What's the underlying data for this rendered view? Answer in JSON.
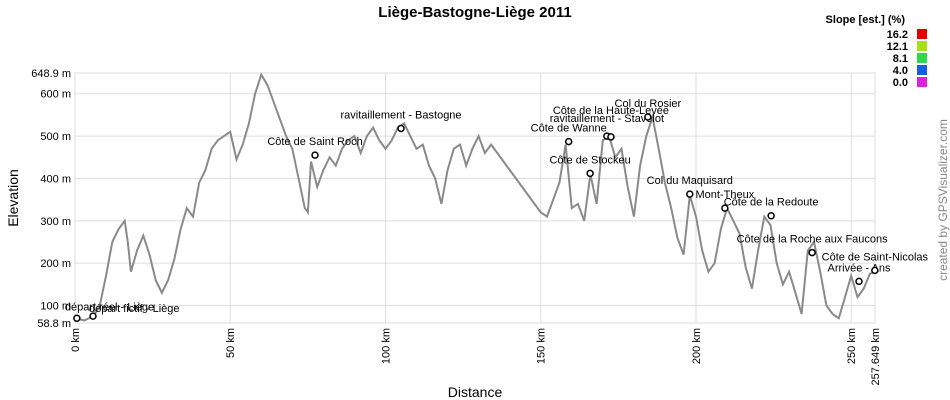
{
  "chart_data": {
    "type": "line",
    "title": "Liège-Bastogne-Liège 2011",
    "x_label": "Distance",
    "y_label": "Elevation",
    "watermark": "created by GPSVisualizer.com",
    "grid": true,
    "color": "#8a8a8a",
    "xlim": [
      0,
      257.649
    ],
    "ylim": [
      58.8,
      648.9
    ],
    "xticks": [
      {
        "value": 0,
        "label": "0 km"
      },
      {
        "value": 50,
        "label": "50 km"
      },
      {
        "value": 100,
        "label": "100 km"
      },
      {
        "value": 150,
        "label": "150 km"
      },
      {
        "value": 200,
        "label": "200 km"
      },
      {
        "value": 250,
        "label": "250 km"
      },
      {
        "value": 257.649,
        "label": "257.649 km"
      }
    ],
    "yticks": [
      {
        "value": 58.8,
        "label": "58.8 m"
      },
      {
        "value": 100,
        "label": "100 m"
      },
      {
        "value": 200,
        "label": "200 m"
      },
      {
        "value": 300,
        "label": "300 m"
      },
      {
        "value": 400,
        "label": "400 m"
      },
      {
        "value": 500,
        "label": "500 m"
      },
      {
        "value": 600,
        "label": "600 m"
      },
      {
        "value": 648.9,
        "label": "648.9 m"
      }
    ],
    "x": [
      0,
      3,
      6,
      8,
      10,
      12,
      14,
      16,
      17,
      18,
      20,
      22,
      24,
      26,
      28,
      30,
      32,
      34,
      36,
      38,
      40,
      42,
      44,
      46,
      48,
      50,
      52,
      54,
      56,
      58,
      60,
      62,
      64,
      66,
      68,
      70,
      72,
      74,
      75,
      76,
      78,
      80,
      82,
      84,
      86,
      88,
      90,
      92,
      94,
      96,
      98,
      100,
      102,
      104,
      106,
      108,
      110,
      112,
      114,
      116,
      118,
      120,
      122,
      124,
      126,
      128,
      130,
      132,
      134,
      136,
      138,
      140,
      142,
      144,
      146,
      148,
      150,
      152,
      154,
      156,
      158,
      160,
      162,
      164,
      166,
      168,
      170,
      172,
      174,
      176,
      178,
      180,
      182,
      184,
      186,
      188,
      190,
      192,
      194,
      196,
      198,
      200,
      202,
      204,
      206,
      208,
      210,
      212,
      214,
      216,
      218,
      220,
      222,
      224,
      226,
      228,
      230,
      232,
      234,
      236,
      238,
      240,
      242,
      244,
      246,
      248,
      250,
      252,
      254,
      256,
      257.649
    ],
    "values": [
      70,
      65,
      75,
      100,
      170,
      250,
      280,
      300,
      250,
      180,
      230,
      265,
      220,
      160,
      130,
      160,
      210,
      280,
      330,
      310,
      390,
      420,
      470,
      490,
      500,
      510,
      445,
      480,
      530,
      600,
      645,
      620,
      580,
      540,
      500,
      470,
      400,
      330,
      320,
      440,
      380,
      420,
      450,
      430,
      470,
      490,
      500,
      460,
      500,
      520,
      490,
      470,
      490,
      520,
      530,
      500,
      470,
      480,
      430,
      400,
      340,
      420,
      470,
      480,
      430,
      470,
      500,
      460,
      480,
      460,
      440,
      420,
      400,
      380,
      360,
      340,
      320,
      310,
      350,
      390,
      480,
      330,
      340,
      300,
      410,
      340,
      490,
      500,
      450,
      470,
      380,
      310,
      430,
      500,
      545,
      470,
      390,
      330,
      260,
      220,
      360,
      310,
      230,
      180,
      200,
      280,
      330,
      300,
      270,
      190,
      140,
      230,
      310,
      290,
      200,
      150,
      180,
      130,
      80,
      230,
      250,
      180,
      100,
      80,
      70,
      120,
      170,
      120,
      140,
      175,
      180
    ],
    "waypoints": [
      {
        "label": "départ réel - Liège",
        "x": 0.6,
        "y": 70
      },
      {
        "label": "départ fictif - Liège",
        "x": 5.8,
        "y": 75
      },
      {
        "label": "Côte de Saint Roch",
        "x": 77.3,
        "y": 455
      },
      {
        "label": "ravitaillement - Bastogne",
        "x": 105,
        "y": 518
      },
      {
        "label": "Côte de Wanne",
        "x": 159,
        "y": 487
      },
      {
        "label": "Côte de Stockeu",
        "x": 165.9,
        "y": 412
      },
      {
        "label": "ravitaillement - Stavelot",
        "x": 171.3,
        "y": 500
      },
      {
        "label": "Côte de la Haute-Levée",
        "x": 172.6,
        "y": 498
      },
      {
        "label": "Col du Rosier",
        "x": 184.5,
        "y": 545
      },
      {
        "label": "Col du Maquisard",
        "x": 198,
        "y": 363
      },
      {
        "label": "Mont-Theux",
        "x": 209.3,
        "y": 330
      },
      {
        "label": "Côte de la Redoute",
        "x": 224.2,
        "y": 312
      },
      {
        "label": "Côte de la Roche aux Faucons",
        "x": 237.4,
        "y": 225
      },
      {
        "label": "Arrivée - Ans",
        "x": 252.5,
        "y": 157
      },
      {
        "label": "Côte de Saint-Nicolas",
        "x": 257.6,
        "y": 183
      }
    ],
    "legend_title": "Slope [est.] (%)",
    "slope_scale": [
      {
        "value": 16.2,
        "color": "#e00000"
      },
      {
        "value": 12.1,
        "color": "#a6e01b"
      },
      {
        "value": 8.1,
        "color": "#2bd94a"
      },
      {
        "value": 4.0,
        "label": "4.0",
        "color": "#1560e0"
      },
      {
        "value": 0.0,
        "label": "0.0",
        "color": "#e020e0"
      }
    ]
  }
}
